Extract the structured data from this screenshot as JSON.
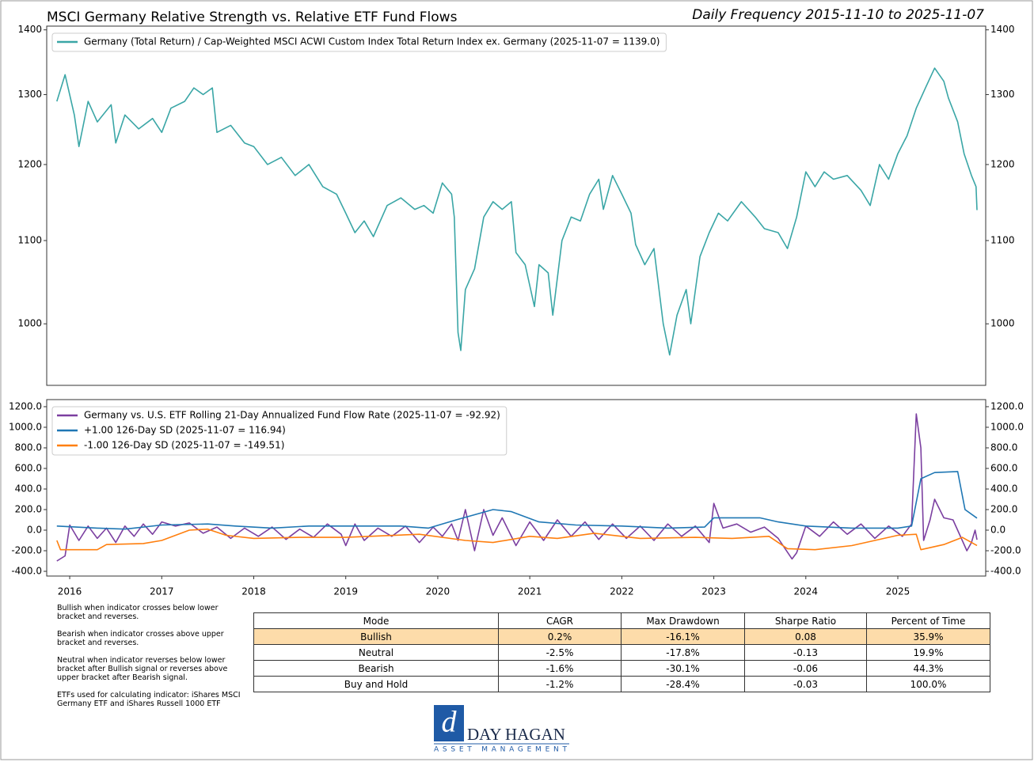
{
  "chart_data": [
    {
      "type": "line",
      "title": "MSCI Germany Relative Strength vs. Relative ETF Fund Flows",
      "subtitle": "Daily Frequency 2015-11-10 to 2025-11-07",
      "log_scale": true,
      "xlim": [
        2015.75,
        2025.955
      ],
      "ylim": [
        932,
        1406
      ],
      "yticks": [
        1000,
        1100,
        1200,
        1300,
        1400
      ],
      "legend": "upper left",
      "series": [
        {
          "name": "Germany (Total Return) / Cap-Weighted MSCI ACWI Custom Index Total Return Index ex. Germany (2025-11-07 = 1139.0)",
          "color": "#3aa6a6",
          "x": [
            2015.86,
            2015.95,
            2016.05,
            2016.1,
            2016.2,
            2016.3,
            2016.45,
            2016.5,
            2016.6,
            2016.75,
            2016.9,
            2017.0,
            2017.1,
            2017.25,
            2017.35,
            2017.45,
            2017.55,
            2017.6,
            2017.75,
            2017.9,
            2018.0,
            2018.15,
            2018.3,
            2018.45,
            2018.6,
            2018.75,
            2018.9,
            2019.0,
            2019.1,
            2019.2,
            2019.3,
            2019.45,
            2019.6,
            2019.75,
            2019.85,
            2019.95,
            2020.05,
            2020.15,
            2020.18,
            2020.22,
            2020.25,
            2020.3,
            2020.4,
            2020.5,
            2020.6,
            2020.7,
            2020.8,
            2020.85,
            2020.95,
            2021.05,
            2021.1,
            2021.2,
            2021.25,
            2021.35,
            2021.45,
            2021.55,
            2021.65,
            2021.75,
            2021.8,
            2021.9,
            2022.0,
            2022.1,
            2022.15,
            2022.25,
            2022.35,
            2022.45,
            2022.52,
            2022.6,
            2022.7,
            2022.75,
            2022.85,
            2022.95,
            2023.05,
            2023.15,
            2023.3,
            2023.45,
            2023.55,
            2023.7,
            2023.8,
            2023.9,
            2024.0,
            2024.1,
            2024.2,
            2024.3,
            2024.45,
            2024.6,
            2024.7,
            2024.8,
            2024.9,
            2025.0,
            2025.1,
            2025.2,
            2025.3,
            2025.4,
            2025.5,
            2025.55,
            2025.65,
            2025.72,
            2025.8,
            2025.85,
            2025.86
          ],
          "values": [
            1290,
            1330,
            1270,
            1225,
            1290,
            1260,
            1285,
            1230,
            1270,
            1250,
            1265,
            1245,
            1280,
            1290,
            1310,
            1300,
            1310,
            1245,
            1255,
            1230,
            1225,
            1200,
            1210,
            1185,
            1200,
            1170,
            1160,
            1135,
            1110,
            1125,
            1105,
            1145,
            1155,
            1140,
            1145,
            1135,
            1175,
            1160,
            1130,
            990,
            970,
            1040,
            1065,
            1130,
            1150,
            1140,
            1150,
            1085,
            1070,
            1020,
            1070,
            1060,
            1010,
            1100,
            1130,
            1125,
            1160,
            1180,
            1140,
            1185,
            1160,
            1135,
            1095,
            1070,
            1090,
            1000,
            965,
            1010,
            1040,
            1000,
            1080,
            1110,
            1135,
            1125,
            1150,
            1130,
            1115,
            1110,
            1090,
            1130,
            1190,
            1170,
            1190,
            1180,
            1185,
            1165,
            1145,
            1200,
            1180,
            1215,
            1240,
            1280,
            1310,
            1340,
            1320,
            1295,
            1260,
            1215,
            1185,
            1170,
            1139
          ]
        }
      ]
    },
    {
      "type": "line",
      "xlim": [
        2015.75,
        2025.955
      ],
      "ylim": [
        -446,
        1269
      ],
      "xticks": [
        2016,
        2017,
        2018,
        2019,
        2020,
        2021,
        2022,
        2023,
        2024,
        2025
      ],
      "yticks": [
        {
          "value": -400,
          "label": "-400.0"
        },
        {
          "value": -200,
          "label": "-200.0"
        },
        {
          "value": 0,
          "label": "0.0"
        },
        {
          "value": 200,
          "label": "200.0"
        },
        {
          "value": 400,
          "label": "400.0"
        },
        {
          "value": 600,
          "label": "600.0"
        },
        {
          "value": 800,
          "label": "800.0"
        },
        {
          "value": 1000,
          "label": "1000.0"
        },
        {
          "value": 1200,
          "label": "1200.0"
        }
      ],
      "legend": "upper left",
      "series": [
        {
          "name": "Germany vs. U.S. ETF Rolling 21-Day Annualized Fund Flow Rate (2025-11-07 = -92.92)",
          "color": "#7b3fa0",
          "x": [
            2015.86,
            2015.95,
            2016.0,
            2016.1,
            2016.2,
            2016.3,
            2016.4,
            2016.5,
            2016.6,
            2016.7,
            2016.8,
            2016.9,
            2017.0,
            2017.15,
            2017.3,
            2017.45,
            2017.6,
            2017.75,
            2017.9,
            2018.05,
            2018.2,
            2018.35,
            2018.5,
            2018.65,
            2018.8,
            2018.95,
            2019.0,
            2019.1,
            2019.2,
            2019.35,
            2019.5,
            2019.65,
            2019.8,
            2019.95,
            2020.05,
            2020.15,
            2020.22,
            2020.3,
            2020.4,
            2020.5,
            2020.6,
            2020.7,
            2020.85,
            2021.0,
            2021.15,
            2021.3,
            2021.45,
            2021.6,
            2021.75,
            2021.9,
            2022.05,
            2022.2,
            2022.35,
            2022.5,
            2022.65,
            2022.8,
            2022.95,
            2023.0,
            2023.1,
            2023.25,
            2023.4,
            2023.55,
            2023.7,
            2023.85,
            2023.9,
            2024.0,
            2024.15,
            2024.3,
            2024.45,
            2024.6,
            2024.75,
            2024.9,
            2025.05,
            2025.15,
            2025.2,
            2025.25,
            2025.28,
            2025.35,
            2025.4,
            2025.5,
            2025.6,
            2025.7,
            2025.75,
            2025.8,
            2025.84,
            2025.86
          ],
          "values": [
            -300,
            -250,
            50,
            -100,
            40,
            -80,
            20,
            -120,
            40,
            -60,
            60,
            -40,
            80,
            40,
            70,
            -30,
            30,
            -80,
            20,
            -60,
            30,
            -90,
            10,
            -70,
            60,
            -40,
            -150,
            60,
            -100,
            20,
            -60,
            40,
            -120,
            30,
            -60,
            60,
            -100,
            200,
            -200,
            200,
            -50,
            120,
            -150,
            80,
            -100,
            100,
            -60,
            80,
            -90,
            60,
            -80,
            40,
            -100,
            60,
            -60,
            40,
            -120,
            260,
            20,
            60,
            -20,
            30,
            -80,
            -280,
            -220,
            40,
            -60,
            80,
            -40,
            60,
            -80,
            40,
            -60,
            60,
            1130,
            800,
            -100,
            100,
            300,
            120,
            100,
            -100,
            -200,
            -120,
            0,
            -92.92
          ]
        },
        {
          "name": "+1.00 126-Day SD (2025-11-07 = 116.94)",
          "color": "#1f77b4",
          "x": [
            2015.86,
            2016.3,
            2016.6,
            2017.0,
            2017.5,
            2017.8,
            2018.2,
            2018.6,
            2019.0,
            2019.6,
            2019.9,
            2020.2,
            2020.6,
            2020.8,
            2021.1,
            2021.5,
            2022.0,
            2022.5,
            2022.9,
            2023.0,
            2023.5,
            2023.7,
            2024.0,
            2024.5,
            2025.0,
            2025.15,
            2025.25,
            2025.4,
            2025.65,
            2025.73,
            2025.86
          ],
          "values": [
            40,
            20,
            10,
            50,
            60,
            40,
            20,
            40,
            40,
            40,
            20,
            100,
            200,
            180,
            80,
            50,
            40,
            20,
            30,
            120,
            120,
            80,
            40,
            20,
            20,
            40,
            500,
            560,
            570,
            200,
            116.94
          ]
        },
        {
          "name": "-1.00 126-Day SD (2025-11-07 = -149.51)",
          "color": "#ff7f0e",
          "x": [
            2015.86,
            2015.9,
            2016.3,
            2016.4,
            2016.8,
            2017.0,
            2017.3,
            2017.5,
            2017.7,
            2018.0,
            2018.5,
            2019.0,
            2019.8,
            2020.3,
            2020.6,
            2021.0,
            2021.3,
            2021.7,
            2022.2,
            2022.8,
            2023.2,
            2023.6,
            2023.8,
            2024.1,
            2024.5,
            2025.0,
            2025.2,
            2025.25,
            2025.5,
            2025.7,
            2025.86
          ],
          "values": [
            -100,
            -190,
            -190,
            -140,
            -130,
            -100,
            0,
            10,
            -50,
            -80,
            -70,
            -70,
            -40,
            -100,
            -120,
            -60,
            -80,
            -30,
            -80,
            -70,
            -80,
            -60,
            -180,
            -190,
            -150,
            -50,
            -40,
            -190,
            -140,
            -70,
            -149.51
          ]
        }
      ]
    }
  ],
  "notes": [
    "Bullish when indicator crosses below lower bracket and reverses.",
    "Bearish when indicator crosses above upper bracket and reverses.",
    "Neutral when indicator reverses below lower bracket after Bullish signal or reverses above upper bracket after Bearish signal.",
    "ETFs used for calculating indicator: iShares MSCI Germany ETF and iShares Russell 1000 ETF"
  ],
  "table": {
    "header": [
      "Mode",
      "CAGR",
      "Max Drawdown",
      "Sharpe Ratio",
      "Percent of Time"
    ],
    "rows": [
      [
        "Bullish",
        "0.2%",
        "-16.1%",
        "0.08",
        "35.9%"
      ],
      [
        "Neutral",
        "-2.5%",
        "-17.8%",
        "-0.13",
        "19.9%"
      ],
      [
        "Bearish",
        "-1.6%",
        "-30.1%",
        "-0.06",
        "44.3%"
      ],
      [
        "Buy and Hold",
        "-1.2%",
        "-28.4%",
        "-0.03",
        "100.0%"
      ]
    ]
  },
  "logo": {
    "name": "DAY HAGAN",
    "tagline": "ASSET MANAGEMENT"
  }
}
